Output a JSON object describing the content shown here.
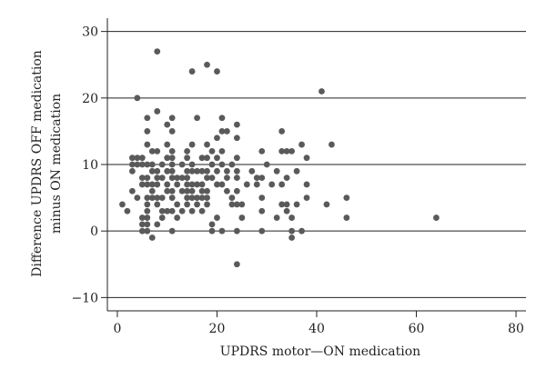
{
  "chart_data": {
    "type": "scatter",
    "xlabel": "UPDRS motor—ON medication",
    "ylabel_line1": "Difference UPDRS OFF medication",
    "ylabel_line2": "minus ON medication",
    "xlim": [
      -2,
      82
    ],
    "ylim": [
      -12,
      32
    ],
    "xticks": [
      0,
      20,
      40,
      60,
      80
    ],
    "yticks": [
      -10,
      0,
      10,
      20,
      30
    ],
    "grid": "horizontal",
    "marker_color": "#5a5a5a",
    "points": [
      [
        1,
        4
      ],
      [
        2,
        3
      ],
      [
        3,
        11
      ],
      [
        3,
        10
      ],
      [
        3,
        9
      ],
      [
        3,
        6
      ],
      [
        4,
        20
      ],
      [
        4,
        11
      ],
      [
        4,
        10
      ],
      [
        4,
        5
      ],
      [
        5,
        11
      ],
      [
        5,
        10
      ],
      [
        5,
        8
      ],
      [
        5,
        7
      ],
      [
        5,
        2
      ],
      [
        5,
        1
      ],
      [
        5,
        0
      ],
      [
        6,
        17
      ],
      [
        6,
        15
      ],
      [
        6,
        13
      ],
      [
        6,
        10
      ],
      [
        6,
        8
      ],
      [
        6,
        7
      ],
      [
        6,
        5
      ],
      [
        6,
        4
      ],
      [
        6,
        3
      ],
      [
        6,
        2
      ],
      [
        6,
        1
      ],
      [
        6,
        0
      ],
      [
        7,
        12
      ],
      [
        7,
        10
      ],
      [
        7,
        9
      ],
      [
        7,
        7
      ],
      [
        7,
        6
      ],
      [
        7,
        5
      ],
      [
        7,
        -1
      ],
      [
        8,
        27
      ],
      [
        8,
        18
      ],
      [
        8,
        12
      ],
      [
        8,
        9
      ],
      [
        8,
        8
      ],
      [
        8,
        7
      ],
      [
        8,
        5
      ],
      [
        8,
        4
      ],
      [
        8,
        1
      ],
      [
        9,
        10
      ],
      [
        9,
        8
      ],
      [
        9,
        5
      ],
      [
        9,
        3
      ],
      [
        9,
        2
      ],
      [
        10,
        16
      ],
      [
        10,
        13
      ],
      [
        10,
        11
      ],
      [
        10,
        9
      ],
      [
        10,
        7
      ],
      [
        10,
        6
      ],
      [
        10,
        3
      ],
      [
        11,
        17
      ],
      [
        11,
        15
      ],
      [
        11,
        12
      ],
      [
        11,
        11
      ],
      [
        11,
        10
      ],
      [
        11,
        9
      ],
      [
        11,
        8
      ],
      [
        11,
        6
      ],
      [
        11,
        5
      ],
      [
        11,
        3
      ],
      [
        11,
        0
      ],
      [
        12,
        8
      ],
      [
        12,
        7
      ],
      [
        12,
        4
      ],
      [
        12,
        2
      ],
      [
        13,
        10
      ],
      [
        13,
        8
      ],
      [
        13,
        6
      ],
      [
        13,
        3
      ],
      [
        14,
        12
      ],
      [
        14,
        11
      ],
      [
        14,
        9
      ],
      [
        14,
        8
      ],
      [
        14,
        7
      ],
      [
        14,
        6
      ],
      [
        14,
        5
      ],
      [
        14,
        4
      ],
      [
        15,
        24
      ],
      [
        15,
        13
      ],
      [
        15,
        10
      ],
      [
        15,
        9
      ],
      [
        15,
        7
      ],
      [
        15,
        6
      ],
      [
        15,
        5
      ],
      [
        15,
        3
      ],
      [
        16,
        17
      ],
      [
        16,
        9
      ],
      [
        16,
        7
      ],
      [
        16,
        5
      ],
      [
        16,
        4
      ],
      [
        17,
        11
      ],
      [
        17,
        9
      ],
      [
        17,
        7
      ],
      [
        17,
        6
      ],
      [
        17,
        5
      ],
      [
        17,
        3
      ],
      [
        18,
        25
      ],
      [
        18,
        13
      ],
      [
        18,
        11
      ],
      [
        18,
        9
      ],
      [
        18,
        8
      ],
      [
        18,
        6
      ],
      [
        18,
        5
      ],
      [
        18,
        4
      ],
      [
        19,
        12
      ],
      [
        19,
        10
      ],
      [
        19,
        8
      ],
      [
        19,
        1
      ],
      [
        19,
        0
      ],
      [
        20,
        24
      ],
      [
        20,
        14
      ],
      [
        20,
        11
      ],
      [
        20,
        9
      ],
      [
        20,
        7
      ],
      [
        20,
        2
      ],
      [
        21,
        17
      ],
      [
        21,
        15
      ],
      [
        21,
        12
      ],
      [
        21,
        10
      ],
      [
        21,
        7
      ],
      [
        21,
        0
      ],
      [
        22,
        15
      ],
      [
        22,
        9
      ],
      [
        22,
        8
      ],
      [
        22,
        6
      ],
      [
        23,
        10
      ],
      [
        23,
        5
      ],
      [
        23,
        4
      ],
      [
        24,
        16
      ],
      [
        24,
        14
      ],
      [
        24,
        11
      ],
      [
        24,
        9
      ],
      [
        24,
        8
      ],
      [
        24,
        6
      ],
      [
        24,
        4
      ],
      [
        24,
        0
      ],
      [
        24,
        -5
      ],
      [
        25,
        4
      ],
      [
        25,
        2
      ],
      [
        26,
        7
      ],
      [
        27,
        9
      ],
      [
        28,
        8
      ],
      [
        28,
        7
      ],
      [
        29,
        12
      ],
      [
        29,
        8
      ],
      [
        29,
        5
      ],
      [
        29,
        3
      ],
      [
        29,
        0
      ],
      [
        30,
        10
      ],
      [
        31,
        7
      ],
      [
        32,
        2
      ],
      [
        32,
        9
      ],
      [
        33,
        15
      ],
      [
        33,
        12
      ],
      [
        33,
        7
      ],
      [
        33,
        4
      ],
      [
        34,
        12
      ],
      [
        34,
        8
      ],
      [
        34,
        4
      ],
      [
        34,
        3
      ],
      [
        35,
        12
      ],
      [
        35,
        2
      ],
      [
        35,
        0
      ],
      [
        35,
        -1
      ],
      [
        36,
        9
      ],
      [
        36,
        4
      ],
      [
        37,
        13
      ],
      [
        37,
        0
      ],
      [
        38,
        11
      ],
      [
        38,
        7
      ],
      [
        38,
        5
      ],
      [
        41,
        21
      ],
      [
        42,
        4
      ],
      [
        43,
        13
      ],
      [
        46,
        5
      ],
      [
        46,
        2
      ],
      [
        64,
        2
      ]
    ]
  }
}
